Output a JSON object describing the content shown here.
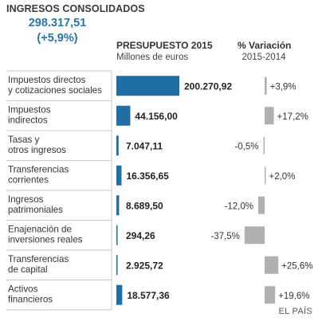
{
  "title": "INGRESOS CONSOLIDADOS",
  "total_value": "298.317,51",
  "total_change": "(+5,9%)",
  "budget_header": "PRESUPUESTO 2015",
  "budget_units": "Millones de euros",
  "variation_header": "% Variación",
  "variation_period": "2015-2014",
  "credit": "EL PAÍS",
  "colors": {
    "budget_bar": "#1f6fa5",
    "variation_bar": "#b0b0b0",
    "separator": "#c8c8c8",
    "label_text": "#333333",
    "value_text": "#222222"
  },
  "chart_data": {
    "type": "bar",
    "categories": [
      [
        "Impuestos directos",
        "y cotizaciones sociales"
      ],
      [
        "Impuestos",
        "indirectos"
      ],
      [
        "Tasas y",
        "otros ingresos"
      ],
      [
        "Transferencias",
        "corrientes"
      ],
      [
        "Ingresos",
        "patrimoniales"
      ],
      [
        "Enajenación de",
        "inversiones reales"
      ],
      [
        "Transferencias",
        "de capital"
      ],
      [
        "Activos",
        "financieros"
      ]
    ],
    "series": [
      {
        "name": "PRESUPUESTO 2015",
        "values": [
          200270.92,
          44156.0,
          7047.11,
          16356.65,
          8689.5,
          294.26,
          2925.72,
          18577.36
        ],
        "labels": [
          "200.270,92",
          "44.156,00",
          "7.047,11",
          "16.356,65",
          "8.689,50",
          "294,26",
          "2.925,72",
          "18.577,36"
        ]
      },
      {
        "name": "% Variación",
        "values": [
          3.9,
          17.2,
          -0.5,
          2.0,
          -12.0,
          -37.5,
          25.6,
          19.6
        ],
        "labels": [
          "+3,9%",
          "+17,2%",
          "-0,5%",
          "+2,0%",
          "-12,0%",
          "-37,5%",
          "+25,6%",
          "+19,6%"
        ]
      }
    ]
  }
}
